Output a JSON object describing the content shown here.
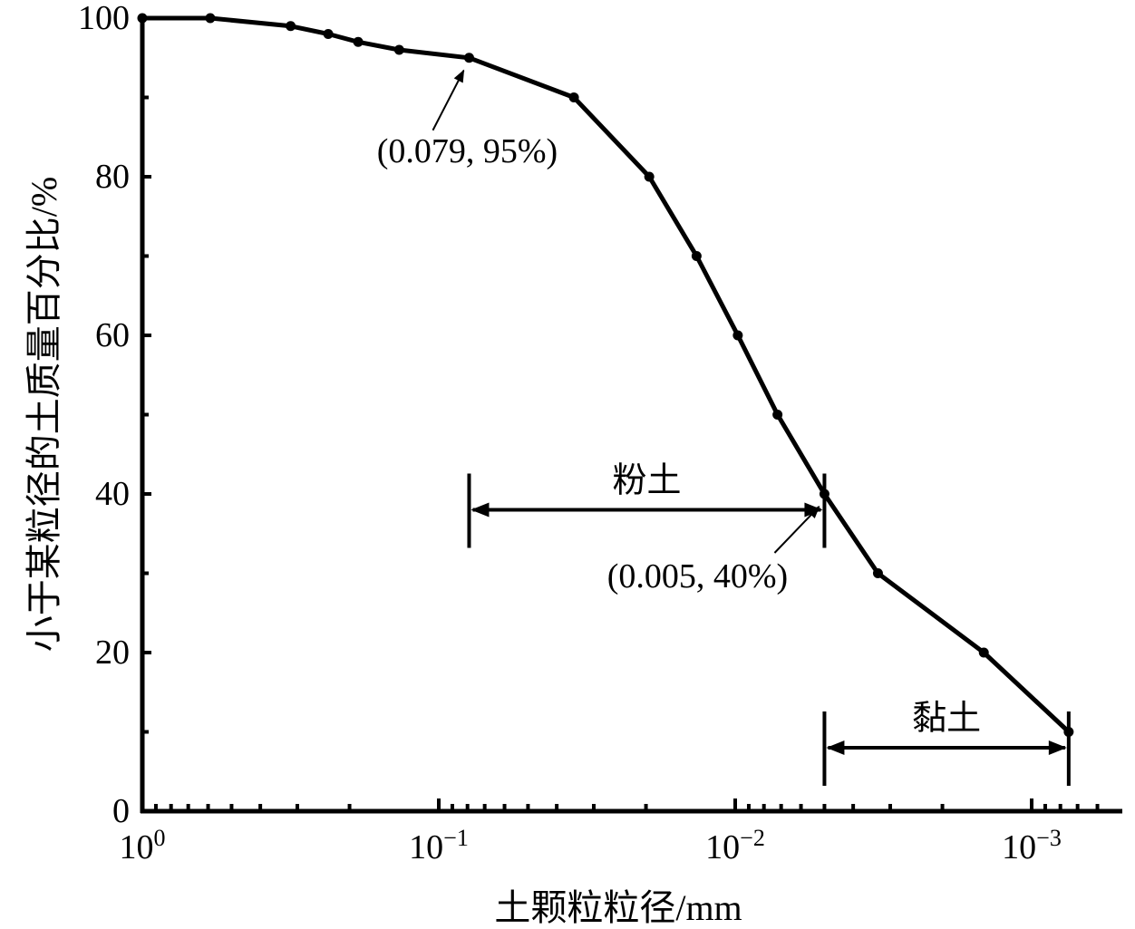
{
  "chart_data": {
    "type": "line",
    "title": "",
    "xlabel": "土颗粒粒径/mm",
    "ylabel": "小于某粒径的土质量百分比/%",
    "x_scale": "log",
    "x_reversed": true,
    "xlim": [
      1,
      0.0005
    ],
    "ylim": [
      0,
      100
    ],
    "grid": false,
    "x_tick_labels": [
      {
        "base": "10",
        "exp": "0",
        "value": 1
      },
      {
        "base": "10",
        "exp": "−1",
        "value": 0.1
      },
      {
        "base": "10",
        "exp": "−2",
        "value": 0.01
      },
      {
        "base": "10",
        "exp": "−3",
        "value": 0.001
      }
    ],
    "y_tick_labels": [
      "0",
      "20",
      "40",
      "60",
      "80",
      "100"
    ],
    "y_tick_values": [
      0,
      20,
      40,
      60,
      80,
      100
    ],
    "series": [
      {
        "x": [
          1,
          0.59,
          0.316,
          0.236,
          0.187,
          0.136,
          0.079,
          0.035,
          0.0195,
          0.0135,
          0.0098,
          0.0072,
          0.005,
          0.0033,
          0.00145,
          0.00075
        ],
        "y": [
          100,
          100,
          99,
          98,
          97,
          96,
          95,
          90,
          80,
          70,
          60,
          50,
          40,
          30,
          20,
          10
        ]
      }
    ],
    "annotations": [
      {
        "text": "(0.079, 95%)",
        "x": 0.079,
        "y": 95
      },
      {
        "text": "(0.005, 40%)",
        "x": 0.005,
        "y": 40
      }
    ],
    "ranges": [
      {
        "label": "粉土",
        "x_from": 0.079,
        "x_to": 0.005,
        "y": 38
      },
      {
        "label": "黏土",
        "x_from": 0.005,
        "x_to": 0.00075,
        "y": 8
      }
    ]
  }
}
